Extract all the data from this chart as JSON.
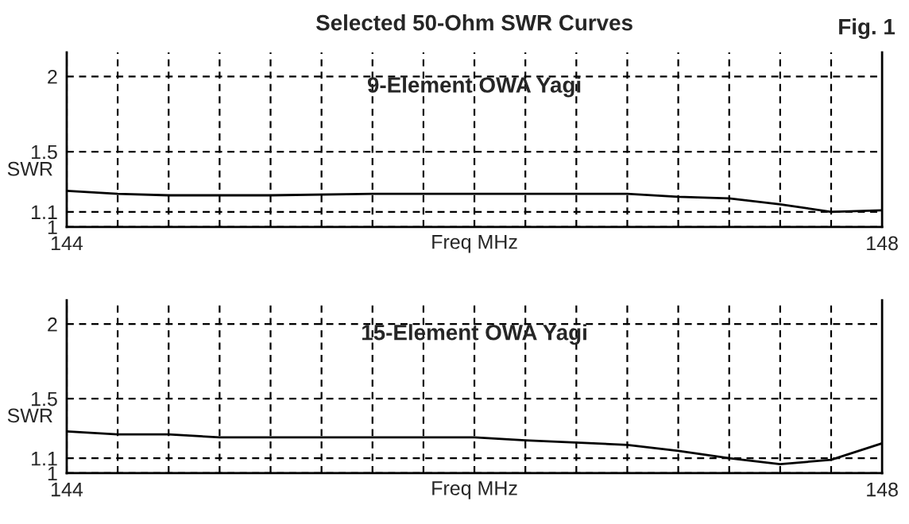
{
  "chart_data": [
    {
      "type": "line",
      "title": "Selected 50-Ohm SWR Curves",
      "subtitle": "9-Element OWA Yagi",
      "annotations": [
        "Fig. 1"
      ],
      "xlabel": "Freq MHz",
      "ylabel": "SWR",
      "x": [
        144,
        144.25,
        144.5,
        145,
        145.5,
        146,
        146.5,
        146.75,
        147,
        147.25,
        147.5,
        147.75,
        148
      ],
      "series": [
        {
          "color": "#000000",
          "values": [
            1.24,
            1.22,
            1.21,
            1.21,
            1.22,
            1.22,
            1.22,
            1.22,
            1.2,
            1.19,
            1.15,
            1.1,
            1.11
          ]
        }
      ],
      "xlim": [
        144,
        148
      ],
      "ylim": [
        1,
        2.16
      ],
      "xticks": [
        144,
        {
          "value": 144.25,
          "label": null
        },
        {
          "value": 144.5,
          "label": null
        },
        {
          "value": 144.75,
          "label": null
        },
        {
          "value": 145,
          "label": null
        },
        {
          "value": 145.25,
          "label": null
        },
        {
          "value": 145.5,
          "label": null
        },
        {
          "value": 145.75,
          "label": null
        },
        {
          "value": 146,
          "label": null
        },
        {
          "value": 146.25,
          "label": null
        },
        {
          "value": 146.5,
          "label": null
        },
        {
          "value": 146.75,
          "label": null
        },
        {
          "value": 147,
          "label": null
        },
        {
          "value": 147.25,
          "label": null
        },
        {
          "value": 147.5,
          "label": null
        },
        {
          "value": 147.75,
          "label": null
        },
        148
      ],
      "yticks": [
        1,
        1.1,
        1.5,
        2
      ],
      "grid": true,
      "line_style": "solid",
      "legend": false
    },
    {
      "type": "line",
      "subtitle": "15-Element OWA Yagi",
      "xlabel": "Freq MHz",
      "ylabel": "SWR",
      "x": [
        144,
        144.25,
        144.5,
        144.75,
        145.5,
        146,
        146.25,
        146.75,
        147,
        147.25,
        147.5,
        147.75,
        148
      ],
      "series": [
        {
          "color": "#000000",
          "values": [
            1.28,
            1.26,
            1.26,
            1.24,
            1.24,
            1.24,
            1.22,
            1.19,
            1.15,
            1.1,
            1.06,
            1.09,
            1.2
          ]
        }
      ],
      "xlim": [
        144,
        148
      ],
      "ylim": [
        1,
        2.16
      ],
      "xticks": [
        144,
        {
          "value": 144.25,
          "label": null
        },
        {
          "value": 144.5,
          "label": null
        },
        {
          "value": 144.75,
          "label": null
        },
        {
          "value": 145,
          "label": null
        },
        {
          "value": 145.25,
          "label": null
        },
        {
          "value": 145.5,
          "label": null
        },
        {
          "value": 145.75,
          "label": null
        },
        {
          "value": 146,
          "label": null
        },
        {
          "value": 146.25,
          "label": null
        },
        {
          "value": 146.5,
          "label": null
        },
        {
          "value": 146.75,
          "label": null
        },
        {
          "value": 147,
          "label": null
        },
        {
          "value": 147.25,
          "label": null
        },
        {
          "value": 147.5,
          "label": null
        },
        {
          "value": 147.75,
          "label": null
        },
        148
      ],
      "yticks": [
        1,
        1.1,
        1.5,
        2
      ],
      "grid": true,
      "line_style": "solid",
      "legend": false
    }
  ]
}
